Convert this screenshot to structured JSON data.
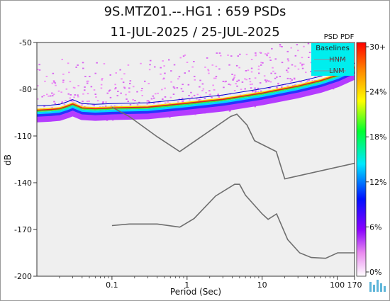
{
  "title_line1": "9S.MTZ01.--.HG1 : 659 PSDs",
  "title_line2": "11-JUL-2025 / 25-JUL-2025",
  "colorbar_title": "PSD PDF",
  "legend": {
    "title": "Baselines",
    "hnm": "HNM",
    "lnm": "LNM"
  },
  "colors": {
    "plot_bg": "#efefef",
    "legend_bg": "#00eeee",
    "baseline": "#6e6e6e",
    "pdf_mode": "#d92020",
    "pdf_edge": "#0000cc"
  },
  "chart_data": {
    "type": "line",
    "xlabel": "Period (Sec)",
    "ylabel": "dB",
    "x_scale": "log",
    "xlim": [
      0.01,
      170
    ],
    "ylim": [
      -200,
      -50
    ],
    "x_ticks": [
      {
        "value": 0.1,
        "label": "0.1"
      },
      {
        "value": 1,
        "label": "1"
      },
      {
        "value": 10,
        "label": "10"
      },
      {
        "value": 100,
        "label": "100"
      },
      {
        "value": 170,
        "label": "170"
      }
    ],
    "y_ticks": [
      -50,
      -80,
      -110,
      -140,
      -170,
      -200
    ],
    "colorbar_ticks": [
      "30+",
      "24%",
      "18%",
      "12%",
      "6%",
      "0%"
    ],
    "series": [
      {
        "name": "HNM",
        "x": [
          0.1,
          0.17,
          0.4,
          0.8,
          3.8,
          4.6,
          6.3,
          7.9,
          15.4,
          20,
          170
        ],
        "y": [
          -91.5,
          -97.5,
          -110.5,
          -120,
          -97.5,
          -96,
          -103,
          -113,
          -120,
          -137.5,
          -127.5
        ]
      },
      {
        "name": "LNM",
        "x": [
          0.1,
          0.17,
          0.4,
          0.8,
          1.24,
          2.4,
          4.3,
          5,
          6,
          10,
          12,
          15.6,
          21.9,
          31.6,
          45,
          70,
          101,
          154,
          170
        ],
        "y": [
          -167.5,
          -166.5,
          -166.5,
          -168.5,
          -163,
          -148.5,
          -141,
          -141,
          -148,
          -160,
          -163.5,
          -160,
          -176.5,
          -185,
          -188,
          -188.5,
          -185,
          -185,
          -185
        ]
      },
      {
        "name": "PDF mode",
        "x": [
          0.01,
          0.0155,
          0.02,
          0.025,
          0.03,
          0.04,
          0.06,
          0.1,
          0.3,
          1,
          3,
          10,
          30,
          60,
          100,
          170
        ],
        "y": [
          -93.5,
          -93,
          -92.5,
          -91,
          -89.5,
          -92,
          -92.5,
          -92,
          -91.5,
          -89,
          -86.5,
          -82.5,
          -78,
          -74.5,
          -71,
          -66
        ]
      }
    ]
  }
}
